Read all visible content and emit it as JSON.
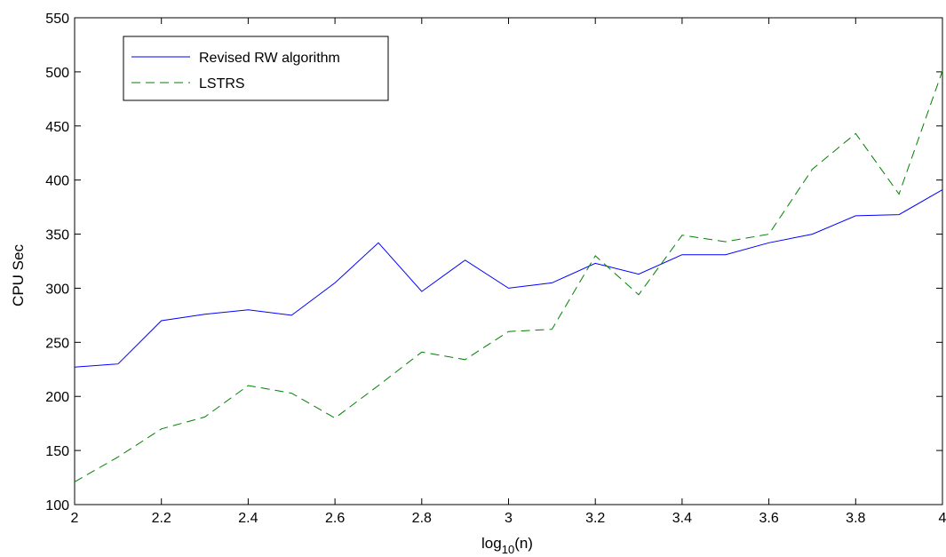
{
  "chart_data": {
    "type": "line",
    "title": "",
    "xlabel": "log",
    "xlabel_sub": "10",
    "xlabel_suffix": "(n)",
    "ylabel": "CPU Sec",
    "xlim": [
      2,
      4
    ],
    "ylim": [
      100,
      550
    ],
    "x_ticks": [
      "2",
      "2.2",
      "2.4",
      "2.6",
      "2.8",
      "3",
      "3.2",
      "3.4",
      "3.6",
      "3.8",
      "4"
    ],
    "y_ticks": [
      "100",
      "150",
      "200",
      "250",
      "300",
      "350",
      "400",
      "450",
      "500",
      "550"
    ],
    "grid": false,
    "legend_position": "top-left",
    "x": [
      2.0,
      2.1,
      2.2,
      2.3,
      2.4,
      2.5,
      2.6,
      2.7,
      2.8,
      2.9,
      3.0,
      3.1,
      3.2,
      3.3,
      3.4,
      3.5,
      3.6,
      3.7,
      3.8,
      3.9,
      4.0
    ],
    "series": [
      {
        "name": "Revised RW algorithm",
        "color": "#0000ff",
        "style": "solid",
        "values": [
          227,
          230,
          270,
          276,
          280,
          275,
          305,
          342,
          297,
          326,
          300,
          305,
          323,
          313,
          331,
          331,
          342,
          350,
          367,
          368,
          391
        ]
      },
      {
        "name": "LSTRS",
        "color": "#008000",
        "style": "dashed",
        "values": [
          121,
          144,
          170,
          181,
          210,
          203,
          180,
          210,
          241,
          234,
          260,
          262,
          330,
          294,
          349,
          343,
          350,
          410,
          443,
          387,
          501
        ]
      }
    ]
  }
}
